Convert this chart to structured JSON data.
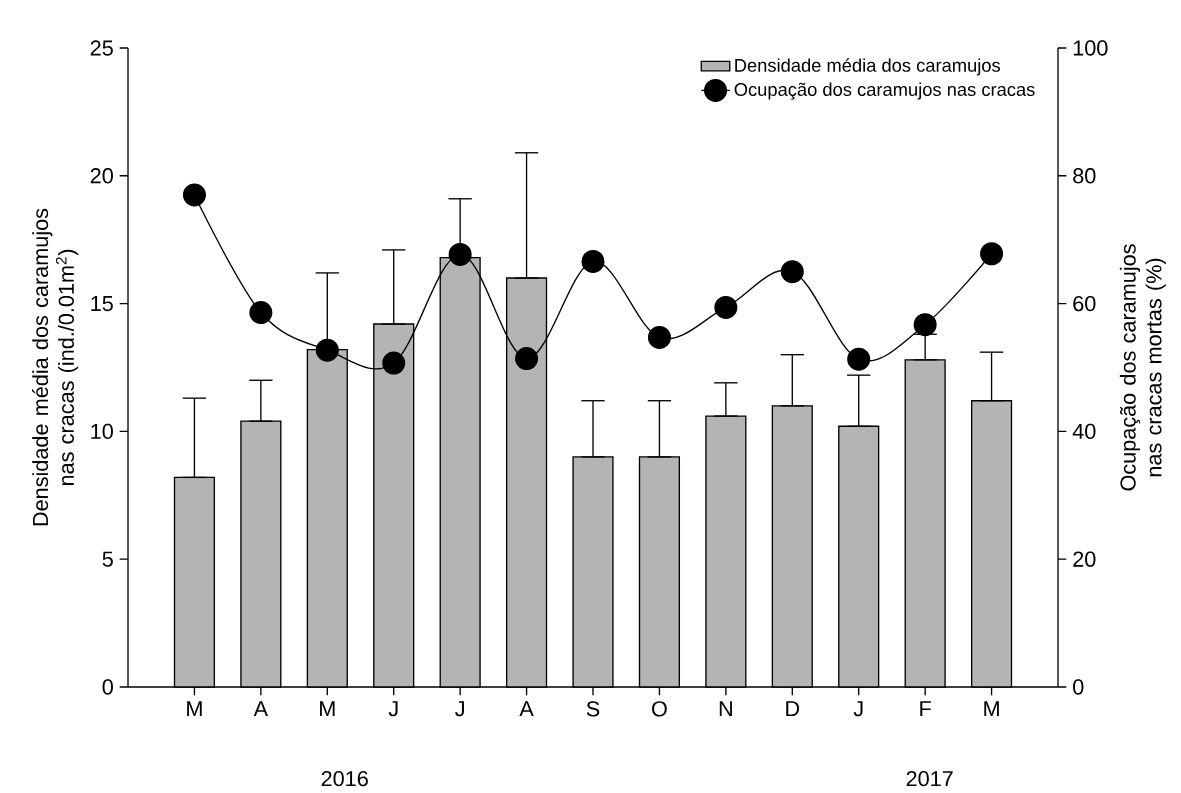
{
  "chart_data": {
    "type": "bar",
    "categories": [
      "M",
      "A",
      "M",
      "J",
      "J",
      "A",
      "S",
      "O",
      "N",
      "D",
      "J",
      "F",
      "M"
    ],
    "ylabel": "Densidade média dos caramujos nas cracas (ind./0.01m$^{2}$)",
    "y2label": "Ocupação dos caramujos nas cracas mortas (%)",
    "ylim": [
      0,
      25
    ],
    "yticks": [
      0,
      5,
      10,
      15,
      20,
      25
    ],
    "y2lim": [
      0,
      100
    ],
    "y2ticks": [
      0,
      20,
      40,
      60,
      80,
      100
    ],
    "legend": "top right",
    "marker": "circle",
    "annotations": [
      "2016",
      "2017"
    ],
    "series": [
      {
        "name": "Densidade média dos caramujos",
        "color": "#b4b4b4",
        "values": [
          8.2,
          10.4,
          13.2,
          14.2,
          16.8,
          16.0,
          9.0,
          9.0,
          10.6,
          11.0,
          10.2,
          12.8,
          11.2
        ],
        "errors": [
          [
            8.2,
            11.3
          ],
          [
            10.4,
            12.0
          ],
          [
            13.2,
            16.2
          ],
          [
            14.2,
            17.1
          ],
          [
            16.8,
            19.1
          ],
          [
            16.0,
            20.9
          ],
          [
            9.0,
            11.2
          ],
          [
            9.0,
            11.2
          ],
          [
            10.6,
            11.9
          ],
          [
            11.0,
            13.0
          ],
          [
            10.2,
            12.2
          ],
          [
            12.8,
            13.8
          ],
          [
            11.2,
            13.1
          ]
        ]
      },
      {
        "name": "Ocupação dos caramujos nas cracas",
        "type": "line",
        "axis": "y2",
        "color": "#000000",
        "values": [
          77,
          58.6,
          52.7,
          50.7,
          67.7,
          51.4,
          66.6,
          54.7,
          59.4,
          65.0,
          51.3,
          56.7,
          67.8
        ]
      }
    ]
  }
}
